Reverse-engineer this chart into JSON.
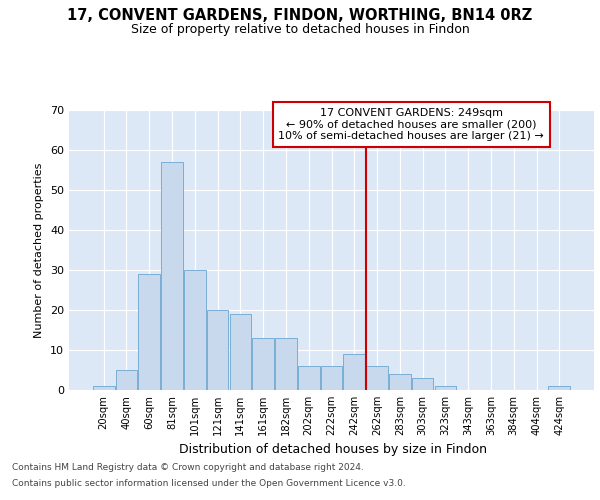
{
  "title": "17, CONVENT GARDENS, FINDON, WORTHING, BN14 0RZ",
  "subtitle": "Size of property relative to detached houses in Findon",
  "xlabel": "Distribution of detached houses by size in Findon",
  "ylabel": "Number of detached properties",
  "bar_labels": [
    "20sqm",
    "40sqm",
    "60sqm",
    "81sqm",
    "101sqm",
    "121sqm",
    "141sqm",
    "161sqm",
    "182sqm",
    "202sqm",
    "222sqm",
    "242sqm",
    "262sqm",
    "283sqm",
    "303sqm",
    "323sqm",
    "343sqm",
    "363sqm",
    "384sqm",
    "404sqm",
    "424sqm"
  ],
  "bar_values": [
    1,
    5,
    29,
    57,
    30,
    20,
    19,
    13,
    13,
    6,
    6,
    9,
    6,
    4,
    3,
    1,
    0,
    0,
    0,
    0,
    1
  ],
  "bar_color": "#c8d9ee",
  "bar_edge_color": "#7aaed6",
  "vline_index": 11.5,
  "vline_color": "#cc0000",
  "annotation_text": "17 CONVENT GARDENS: 249sqm\n← 90% of detached houses are smaller (200)\n10% of semi-detached houses are larger (21) →",
  "annotation_box_facecolor": "#ffffff",
  "annotation_box_edgecolor": "#cc0000",
  "bg_color": "#ffffff",
  "plot_bg_color": "#dce8f5",
  "grid_color": "#ffffff",
  "footer1": "Contains HM Land Registry data © Crown copyright and database right 2024.",
  "footer2": "Contains public sector information licensed under the Open Government Licence v3.0.",
  "ylim": [
    0,
    70
  ],
  "yticks": [
    0,
    10,
    20,
    30,
    40,
    50,
    60,
    70
  ]
}
